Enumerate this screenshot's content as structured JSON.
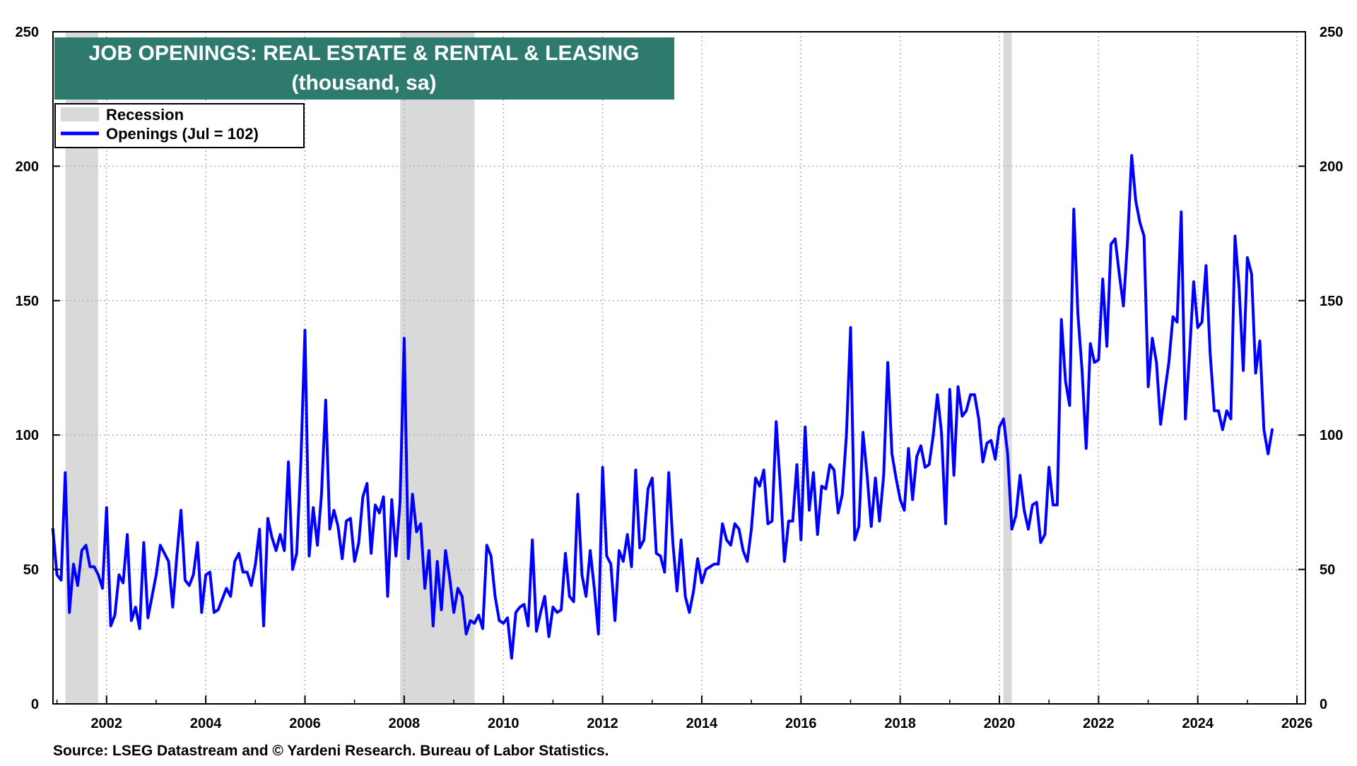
{
  "chart_data": {
    "type": "line",
    "title": "JOB OPENINGS: REAL ESTATE & RENTAL & LEASING",
    "subtitle": "(thousand, sa)",
    "source": "Source: LSEG Datastream and © Yardeni Research. Bureau of Labor Statistics.",
    "ylim": [
      0,
      250
    ],
    "yticks": [
      0,
      50,
      100,
      150,
      200,
      250
    ],
    "xlim": [
      2000.92,
      2026.17
    ],
    "xticks": [
      2002,
      2004,
      2006,
      2008,
      2010,
      2012,
      2014,
      2016,
      2018,
      2020,
      2022,
      2024,
      2026
    ],
    "grid": true,
    "colors": {
      "line": "#0000ff",
      "recession": "#d9d9d9",
      "title_bg": "#2e7b6e"
    },
    "legend": {
      "position": "top-left",
      "entries": [
        {
          "label": "Recession",
          "kind": "band"
        },
        {
          "label": "Openings (Jul = 102)",
          "kind": "line"
        }
      ]
    },
    "recessions": [
      [
        2001.17,
        2001.83
      ],
      [
        2007.92,
        2009.42
      ],
      [
        2020.08,
        2020.25
      ]
    ],
    "series": [
      {
        "name": "Openings",
        "start": 2000.917,
        "step": 0.0833333,
        "values": [
          65,
          48,
          46,
          86,
          34,
          52,
          44,
          57,
          59,
          51,
          51,
          48,
          43,
          73,
          29,
          33,
          48,
          45,
          63,
          31,
          36,
          28,
          60,
          32,
          40,
          48,
          59,
          56,
          53,
          36,
          55,
          72,
          46,
          44,
          48,
          60,
          34,
          48,
          49,
          34,
          35,
          39,
          43,
          40,
          53,
          56,
          49,
          49,
          44,
          52,
          65,
          29,
          69,
          62,
          57,
          63,
          57,
          90,
          50,
          56,
          90,
          139,
          55,
          73,
          59,
          78,
          113,
          65,
          72,
          66,
          54,
          68,
          69,
          53,
          60,
          77,
          82,
          56,
          74,
          71,
          77,
          40,
          76,
          55,
          75,
          136,
          54,
          78,
          64,
          67,
          43,
          57,
          29,
          53,
          35,
          57,
          47,
          34,
          43,
          40,
          26,
          31,
          30,
          33,
          28,
          59,
          55,
          40,
          31,
          30,
          32,
          17,
          34,
          36,
          37,
          29,
          61,
          27,
          34,
          40,
          25,
          36,
          34,
          35,
          56,
          40,
          38,
          78,
          48,
          40,
          57,
          43,
          26,
          88,
          55,
          52,
          31,
          57,
          53,
          63,
          51,
          87,
          58,
          61,
          80,
          84,
          56,
          55,
          49,
          86,
          60,
          42,
          61,
          40,
          34,
          42,
          54,
          45,
          50,
          51,
          52,
          52,
          67,
          61,
          59,
          67,
          65,
          57,
          53,
          65,
          84,
          81,
          87,
          67,
          68,
          105,
          81,
          53,
          68,
          68,
          89,
          61,
          103,
          72,
          86,
          63,
          81,
          80,
          89,
          87,
          71,
          78,
          100,
          140,
          61,
          66,
          101,
          85,
          66,
          84,
          68,
          85,
          127,
          93,
          84,
          76,
          72,
          95,
          76,
          92,
          96,
          88,
          89,
          100,
          115,
          101,
          67,
          117,
          85,
          118,
          107,
          109,
          115,
          115,
          106,
          90,
          97,
          98,
          91,
          103,
          106,
          93,
          65,
          70,
          85,
          72,
          65,
          74,
          75,
          60,
          63,
          88,
          74,
          74,
          143,
          120,
          111,
          184,
          145,
          124,
          95,
          134,
          127,
          128,
          158,
          133,
          171,
          173,
          160,
          148,
          172,
          204,
          187,
          179,
          174,
          118,
          136,
          127,
          104,
          116,
          127,
          144,
          142,
          183,
          106,
          130,
          157,
          140,
          142,
          163,
          130,
          109,
          109,
          102,
          109,
          106,
          174,
          155,
          124,
          166,
          160,
          123,
          135,
          102,
          93,
          102
        ]
      }
    ]
  }
}
